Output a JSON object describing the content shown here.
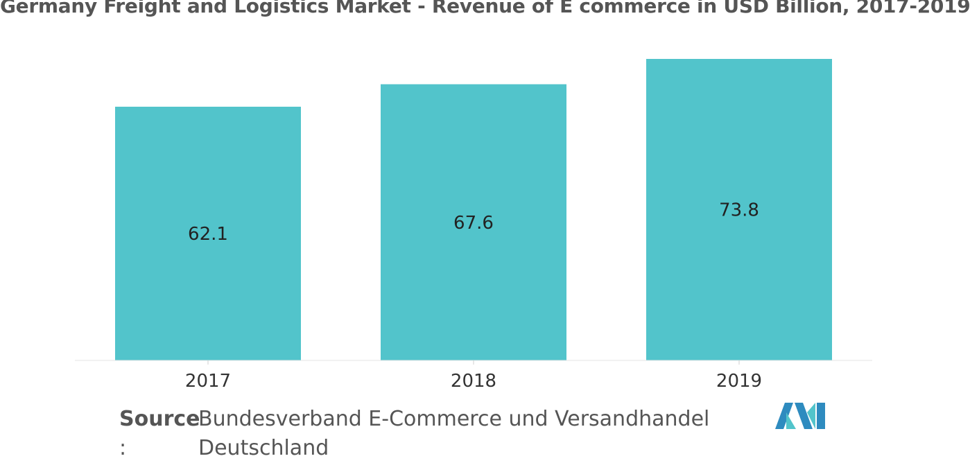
{
  "chart_data": {
    "type": "bar",
    "title": "Germany Freight and Logistics Market - Revenue of E commerce in USD Billion, 2017-2019",
    "categories": [
      "2017",
      "2018",
      "2019"
    ],
    "values": [
      62.1,
      67.6,
      73.8
    ],
    "value_labels": [
      "62.1",
      "67.6",
      "73.8"
    ],
    "xlabel": "",
    "ylabel": "",
    "ylim": [
      0,
      73.8
    ],
    "grid": false,
    "legend": "none",
    "bar_color": "#52c4cb"
  },
  "source": {
    "label": "Source",
    "colon": ":",
    "line1": "Bundesverband E-Commerce und Versandhandel",
    "line2": "Deutschland"
  },
  "logo": {
    "icon": "mordor-intelligence-logo",
    "colors": [
      "#2e8bbf",
      "#52c4cb"
    ]
  }
}
